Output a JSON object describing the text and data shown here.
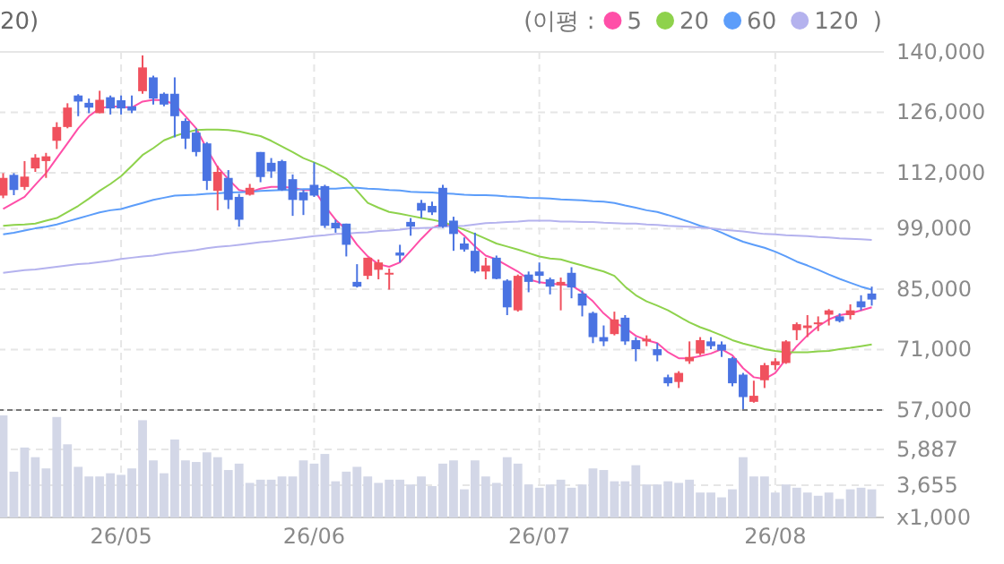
{
  "chart_data": [
    {
      "type": "candlestick",
      "annotations": [
        "20)",
        ")"
      ],
      "legend_title": "(이평 :",
      "legend": "top right",
      "grid": true,
      "tick_labels": "y",
      "categories": [
        null,
        null,
        null,
        null,
        null,
        null,
        null,
        null,
        null,
        null,
        null,
        null,
        null,
        null,
        null,
        null,
        null,
        null,
        null,
        null,
        null,
        null,
        null,
        null,
        null,
        null,
        null,
        null,
        null,
        null,
        null,
        null,
        null,
        null,
        null,
        null,
        null,
        null,
        null,
        null,
        null,
        null,
        null,
        null,
        null,
        null,
        null,
        null,
        null,
        null,
        null,
        null,
        null,
        null,
        null,
        null,
        null,
        null,
        null,
        null,
        null,
        null,
        null,
        null,
        null,
        null,
        null,
        null,
        null,
        null,
        null,
        null,
        null,
        null,
        null,
        null,
        null,
        null,
        null,
        null,
        null,
        null
      ],
      "ylim": [
        57000,
        140000
      ],
      "yticks": [
        {
          "value": 57000,
          "label": "57,000"
        },
        {
          "value": 71000,
          "label": "71,000"
        },
        {
          "value": 85000,
          "label": "85,000"
        },
        {
          "value": 99000,
          "label": "99,000"
        },
        {
          "value": 112000,
          "label": "112,000"
        },
        {
          "value": 126000,
          "label": "126,000"
        },
        {
          "value": 140000,
          "label": "140,000"
        }
      ],
      "ohlc": [
        [
          106700,
          111900,
          106100,
          110800
        ],
        [
          111500,
          111900,
          106800,
          108000
        ],
        [
          108700,
          114700,
          108000,
          111100
        ],
        [
          113000,
          116300,
          112200,
          115500
        ],
        [
          114700,
          116600,
          110800,
          115800
        ],
        [
          119400,
          123700,
          117500,
          122600
        ],
        [
          122600,
          128100,
          122300,
          127100
        ],
        [
          129900,
          130200,
          125100,
          128500
        ],
        [
          128200,
          129200,
          125800,
          127100
        ],
        [
          125800,
          131000,
          125800,
          128900
        ],
        [
          129500,
          129900,
          125500,
          126900
        ],
        [
          128800,
          129900,
          125500,
          126900
        ],
        [
          127400,
          129900,
          125800,
          126400
        ],
        [
          130900,
          139200,
          130300,
          136400
        ],
        [
          134100,
          134500,
          127800,
          129200
        ],
        [
          130300,
          130600,
          127400,
          127800
        ],
        [
          130300,
          134100,
          120200,
          125100
        ],
        [
          124000,
          124600,
          117500,
          119900
        ],
        [
          121300,
          122300,
          115800,
          116800
        ],
        [
          118800,
          119100,
          108000,
          110100
        ],
        [
          107800,
          113600,
          103300,
          112200
        ],
        [
          110800,
          112600,
          103600,
          105700
        ],
        [
          106400,
          107100,
          99500,
          101100
        ],
        [
          106900,
          109400,
          106700,
          108500
        ],
        [
          116800,
          116800,
          109800,
          111000
        ],
        [
          114300,
          115400,
          110800,
          112300
        ],
        [
          114700,
          115000,
          107800,
          108000
        ],
        [
          110500,
          111600,
          102000,
          105700
        ],
        [
          107500,
          108000,
          102200,
          105600
        ],
        [
          109200,
          114400,
          106400,
          106700
        ],
        [
          108900,
          109200,
          99200,
          99700
        ],
        [
          100400,
          101100,
          98100,
          99100
        ],
        [
          100200,
          100200,
          92600,
          95300
        ],
        [
          86700,
          90800,
          85400,
          85600
        ],
        [
          88100,
          92300,
          87300,
          92300
        ],
        [
          89500,
          91900,
          87300,
          91200
        ],
        [
          88400,
          89800,
          84900,
          88800
        ],
        [
          93500,
          95300,
          91200,
          92800
        ],
        [
          100600,
          101500,
          97400,
          99500
        ],
        [
          105000,
          105700,
          101500,
          103200
        ],
        [
          104300,
          105300,
          102200,
          102800
        ],
        [
          108500,
          109200,
          99200,
          99500
        ],
        [
          100900,
          101800,
          93900,
          97800
        ],
        [
          95600,
          97000,
          93700,
          94200
        ],
        [
          93900,
          98100,
          88700,
          89100
        ],
        [
          89100,
          92300,
          87300,
          90500
        ],
        [
          92300,
          92800,
          87300,
          87400
        ],
        [
          87000,
          87300,
          79000,
          80800
        ],
        [
          80100,
          88400,
          79800,
          88100
        ],
        [
          88400,
          89100,
          84300,
          86700
        ],
        [
          89100,
          91200,
          86300,
          88100
        ],
        [
          87300,
          87700,
          83800,
          85600
        ],
        [
          85900,
          87700,
          80100,
          86700
        ],
        [
          88800,
          90100,
          82900,
          85400
        ],
        [
          84000,
          84700,
          78700,
          81200
        ],
        [
          79500,
          79800,
          72500,
          73900
        ],
        [
          73900,
          76600,
          71800,
          72900
        ],
        [
          74600,
          79800,
          74300,
          78000
        ],
        [
          78400,
          79000,
          72100,
          72900
        ],
        [
          73200,
          73900,
          68300,
          71100
        ],
        [
          72900,
          74300,
          71800,
          73500
        ],
        [
          71100,
          72500,
          68300,
          69700
        ],
        [
          64600,
          65200,
          62500,
          63200
        ],
        [
          63500,
          66000,
          62100,
          65600
        ],
        [
          68300,
          72900,
          67700,
          69300
        ],
        [
          70100,
          73900,
          69700,
          73200
        ],
        [
          72900,
          73900,
          71100,
          71800
        ],
        [
          72200,
          72900,
          69300,
          70800
        ],
        [
          69000,
          69300,
          62500,
          63200
        ],
        [
          65200,
          65600,
          57200,
          60000
        ],
        [
          58900,
          63800,
          58700,
          60300
        ],
        [
          63900,
          67900,
          62100,
          67400
        ],
        [
          67400,
          69000,
          66300,
          68300
        ],
        [
          67900,
          73200,
          67700,
          72900
        ],
        [
          75500,
          77300,
          73200,
          76900
        ],
        [
          76000,
          79000,
          73900,
          76600
        ],
        [
          77100,
          78700,
          75300,
          77300
        ],
        [
          79100,
          80400,
          76600,
          80100
        ],
        [
          78700,
          79400,
          77300,
          77600
        ],
        [
          79000,
          81500,
          78000,
          80100
        ],
        [
          82200,
          83600,
          80100,
          80800
        ],
        [
          84000,
          85600,
          81200,
          82600
        ]
      ],
      "series": [
        {
          "name": "5",
          "type": "line",
          "color": "#ff4fa8",
          "values": [
            103600,
            105000,
            106400,
            109200,
            111900,
            115400,
            118800,
            122300,
            125100,
            126900,
            127400,
            127300,
            127100,
            128500,
            128900,
            128800,
            127800,
            125100,
            122300,
            117500,
            113300,
            110500,
            108000,
            107500,
            108300,
            108700,
            108700,
            108500,
            108000,
            108000,
            104300,
            101100,
            98800,
            95300,
            92600,
            90800,
            90200,
            91200,
            93900,
            96700,
            99200,
            100200,
            99500,
            97400,
            94900,
            92800,
            91900,
            90500,
            89100,
            87300,
            86600,
            86300,
            86100,
            85900,
            84300,
            82200,
            79400,
            77300,
            76000,
            74200,
            73200,
            72500,
            70400,
            69000,
            69000,
            69500,
            70100,
            71100,
            69700,
            66700,
            64600,
            64200,
            65600,
            68800,
            71800,
            74300,
            76400,
            78000,
            79000,
            79400,
            80100,
            80800
          ]
        },
        {
          "name": "20",
          "type": "line",
          "color": "#8ed24c",
          "values": [
            99700,
            99900,
            100000,
            100200,
            100900,
            101500,
            102900,
            104300,
            106000,
            107800,
            109400,
            111200,
            113600,
            116100,
            117700,
            119500,
            120500,
            121300,
            121900,
            122000,
            122000,
            121900,
            121600,
            121000,
            120500,
            119400,
            118100,
            116800,
            115400,
            114400,
            113300,
            111900,
            110500,
            107800,
            105000,
            103900,
            102900,
            102500,
            102000,
            101500,
            101100,
            100600,
            99700,
            98800,
            97800,
            96700,
            95600,
            94900,
            94200,
            93400,
            92600,
            92100,
            91900,
            91200,
            90500,
            89800,
            89100,
            88100,
            85600,
            83600,
            82200,
            81200,
            80100,
            78700,
            77300,
            76200,
            75300,
            74300,
            73200,
            72400,
            71800,
            71100,
            70700,
            70400,
            70400,
            70400,
            70600,
            70700,
            71100,
            71400,
            71800,
            72200
          ]
        },
        {
          "name": "60",
          "type": "line",
          "color": "#5c9dfa",
          "values": [
            97700,
            98100,
            98600,
            99100,
            99500,
            100000,
            100700,
            101400,
            102100,
            102800,
            103300,
            103600,
            104300,
            105000,
            105700,
            106200,
            106700,
            106800,
            106900,
            107100,
            107200,
            107400,
            107500,
            107600,
            107800,
            107900,
            108000,
            108000,
            108200,
            108200,
            108300,
            108300,
            108500,
            108500,
            108300,
            108200,
            108000,
            107900,
            107600,
            107500,
            107400,
            107200,
            107100,
            106900,
            106800,
            106800,
            106700,
            106500,
            106400,
            106200,
            106100,
            106000,
            105800,
            105700,
            105600,
            105400,
            105300,
            105000,
            104400,
            103900,
            103300,
            102900,
            102200,
            101400,
            100600,
            99700,
            99100,
            98100,
            97000,
            96000,
            95300,
            94600,
            93700,
            92600,
            91400,
            90500,
            89500,
            88400,
            87400,
            86500,
            85600,
            84900
          ]
        },
        {
          "name": "120",
          "type": "line",
          "color": "#b4b2ee",
          "values": [
            88800,
            89100,
            89400,
            89600,
            89900,
            90200,
            90500,
            90800,
            91000,
            91300,
            91600,
            92000,
            92300,
            92600,
            92800,
            93200,
            93500,
            93800,
            94100,
            94500,
            94800,
            95000,
            95300,
            95600,
            95900,
            96100,
            96400,
            96700,
            97000,
            97300,
            97500,
            97800,
            97900,
            98100,
            98200,
            98500,
            98600,
            98800,
            99100,
            99200,
            99300,
            99500,
            99600,
            99700,
            100000,
            100300,
            100400,
            100600,
            100700,
            100900,
            100900,
            100900,
            100700,
            100700,
            100600,
            100600,
            100400,
            100300,
            100200,
            100200,
            100000,
            99900,
            99700,
            99600,
            99500,
            99300,
            99100,
            98800,
            98600,
            98400,
            98100,
            97800,
            97700,
            97500,
            97400,
            97300,
            97100,
            97000,
            96800,
            96700,
            96600,
            96400
          ]
        }
      ]
    },
    {
      "type": "bar",
      "grid": true,
      "ylabel": "x1,000",
      "color": "#d3d7e7",
      "categories": [
        null,
        null,
        null,
        null,
        null,
        null,
        null,
        null,
        null,
        null,
        null,
        "26/05",
        null,
        null,
        null,
        null,
        null,
        null,
        null,
        null,
        null,
        null,
        null,
        null,
        null,
        null,
        null,
        null,
        null,
        "26/06",
        null,
        null,
        null,
        null,
        null,
        null,
        null,
        null,
        null,
        null,
        null,
        null,
        null,
        null,
        null,
        null,
        null,
        null,
        null,
        null,
        "26/07",
        null,
        null,
        null,
        null,
        null,
        null,
        null,
        null,
        null,
        null,
        null,
        null,
        null,
        null,
        null,
        null,
        null,
        null,
        null,
        null,
        null,
        "26/08",
        null,
        null,
        null,
        null,
        null,
        null,
        null,
        null,
        null
      ],
      "ylim": [
        1650,
        8000
      ],
      "yticks": [
        {
          "value": 3655,
          "label": "3,655"
        },
        {
          "value": 5887,
          "label": "5,887"
        }
      ],
      "values": [
        8000,
        4500,
        6000,
        5400,
        4700,
        7900,
        6200,
        4800,
        4200,
        4200,
        4400,
        4300,
        4700,
        7700,
        5200,
        4400,
        6500,
        5200,
        5100,
        5700,
        5400,
        4600,
        5000,
        3800,
        4000,
        4000,
        4200,
        4200,
        5200,
        5000,
        5600,
        3900,
        4500,
        4800,
        4200,
        3800,
        4000,
        4000,
        3700,
        4200,
        3600,
        5000,
        5200,
        3400,
        5200,
        4200,
        3800,
        5400,
        5000,
        3700,
        3500,
        3700,
        4000,
        3500,
        3700,
        4700,
        4600,
        3900,
        3900,
        4900,
        3700,
        3700,
        3900,
        3800,
        4000,
        3200,
        3200,
        2900,
        3400,
        5400,
        4200,
        4200,
        3200,
        3700,
        3500,
        3200,
        3000,
        3200,
        2800,
        3400,
        3500,
        3400
      ]
    }
  ]
}
